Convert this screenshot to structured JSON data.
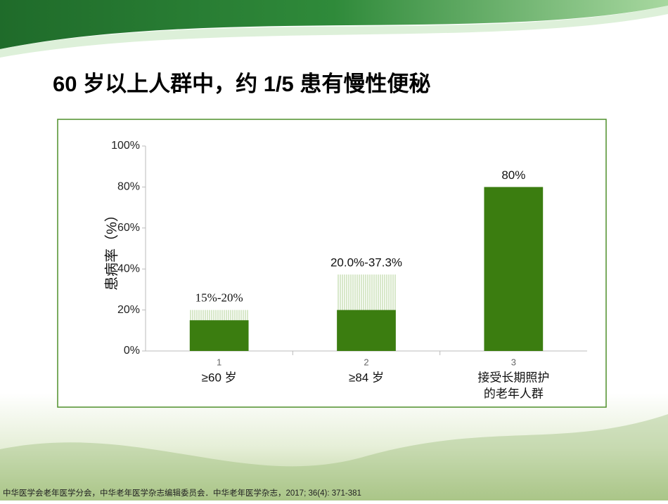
{
  "title": "60 岁以上人群中，约 1/5 患有慢性便秘",
  "footnote": "中华医学会老年医学分会，中华老年医学杂志编辑委员会．中华老年医学杂志，2017; 36(4): 371-381",
  "chart_data": {
    "type": "bar",
    "y_label": "患病率（%）",
    "categories": [
      "1",
      "2",
      "3"
    ],
    "category_labels": [
      [
        "≥60 岁"
      ],
      [
        "≥84 岁"
      ],
      [
        "接受长期照护",
        "的老年人群"
      ]
    ],
    "values": [
      15,
      20,
      80
    ],
    "upper": [
      20,
      37.3,
      null
    ],
    "value_labels": [
      "15%-20%",
      "20.0%-37.3%",
      "80%"
    ],
    "color": "#3b7d10",
    "range_color": "#9cc47a",
    "ylim": [
      0,
      100
    ],
    "yticks": [
      {
        "value": 0,
        "label": "0%"
      },
      {
        "value": 20,
        "label": "20%"
      },
      {
        "value": 40,
        "label": "40%"
      },
      {
        "value": 60,
        "label": "60%"
      },
      {
        "value": 80,
        "label": "80%"
      },
      {
        "value": 100,
        "label": "100%"
      }
    ]
  }
}
